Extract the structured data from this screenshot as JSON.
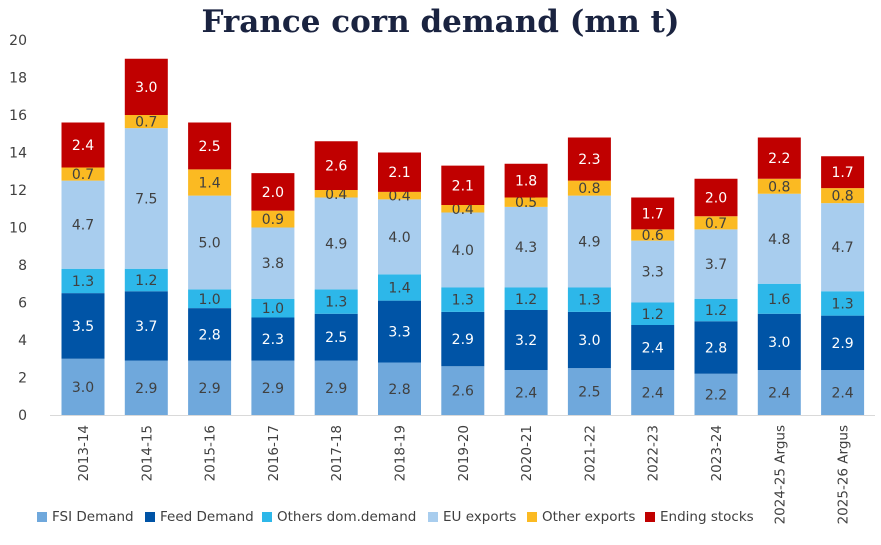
{
  "chart_data": {
    "type": "bar",
    "stacked": true,
    "title": "France corn demand (mn t)",
    "xlabel": "",
    "ylabel": "",
    "ylim": [
      0,
      20
    ],
    "yticks": [
      0,
      2,
      4,
      6,
      8,
      10,
      12,
      14,
      16,
      18,
      20
    ],
    "grid": false,
    "legend_position": "bottom",
    "categories": [
      "2013-14",
      "2014-15",
      "2015-16",
      "2016-17",
      "2017-18",
      "2018-19",
      "2019-20",
      "2020-21",
      "2021-22",
      "2022-23",
      "2023-24",
      "2024-25 Argus",
      "2025-26 Argus"
    ],
    "series": [
      {
        "name": "FSI Demand",
        "color": "#6fa8dc",
        "label_color": "#404040",
        "values": [
          3.0,
          2.9,
          2.9,
          2.9,
          2.9,
          2.8,
          2.6,
          2.4,
          2.5,
          2.4,
          2.2,
          2.4,
          2.4
        ]
      },
      {
        "name": "Feed Demand",
        "color": "#0054a6",
        "label_color": "#ffffff",
        "values": [
          3.5,
          3.7,
          2.8,
          2.3,
          2.5,
          3.3,
          2.9,
          3.2,
          3.0,
          2.4,
          2.8,
          3.0,
          2.9
        ]
      },
      {
        "name": "Others dom.demand",
        "color": "#2db7e9",
        "label_color": "#404040",
        "values": [
          1.3,
          1.2,
          1.0,
          1.0,
          1.3,
          1.4,
          1.3,
          1.2,
          1.3,
          1.2,
          1.2,
          1.6,
          1.3
        ]
      },
      {
        "name": "EU exports",
        "color": "#a8cdee",
        "label_color": "#404040",
        "values": [
          4.7,
          7.5,
          5.0,
          3.8,
          4.9,
          4.0,
          4.0,
          4.3,
          4.9,
          3.3,
          3.7,
          4.8,
          4.7
        ]
      },
      {
        "name": "Other exports",
        "color": "#fbba22",
        "label_color": "#404040",
        "values": [
          0.7,
          0.7,
          1.4,
          0.9,
          0.4,
          0.4,
          0.4,
          0.5,
          0.8,
          0.6,
          0.7,
          0.8,
          0.8
        ]
      },
      {
        "name": "Ending stocks",
        "color": "#c00000",
        "label_color": "#ffffff",
        "values": [
          2.4,
          3.0,
          2.5,
          2.0,
          2.6,
          2.1,
          2.1,
          1.8,
          2.3,
          1.7,
          2.0,
          2.2,
          1.7
        ]
      }
    ]
  }
}
